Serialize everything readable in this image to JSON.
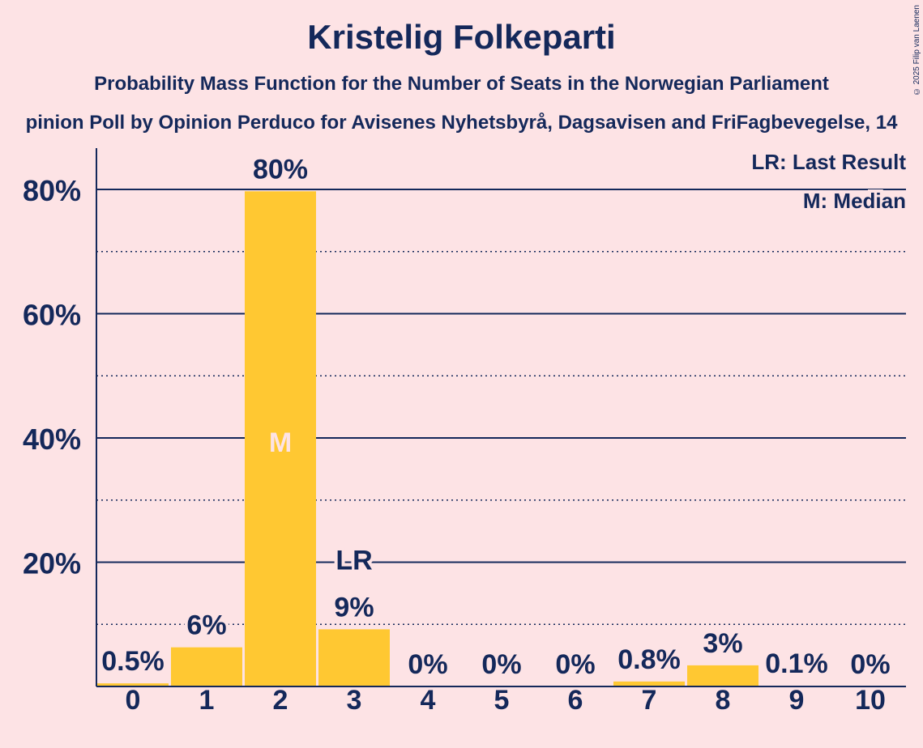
{
  "title": "Kristelig Folkeparti",
  "subtitle": "Probability Mass Function for the Number of Seats in the Norwegian Parliament",
  "subtitle2": "pinion Poll by Opinion Perduco for Avisenes Nyhetsbyrå, Dagsavisen and FriFagbevegelse, 14",
  "copyright": "© 2025 Filip van Laenen",
  "colors": {
    "background": "#fde3e5",
    "bar": "#ffc832",
    "text": "#14285a"
  },
  "chart_data": {
    "type": "bar",
    "categories": [
      "0",
      "1",
      "2",
      "3",
      "4",
      "5",
      "6",
      "7",
      "8",
      "9",
      "10"
    ],
    "values": [
      0.5,
      6.3,
      79.7,
      9.2,
      0,
      0,
      0,
      0.8,
      3.4,
      0.1,
      0
    ],
    "value_labels": [
      "0.5%",
      "6%",
      "80%",
      "9%",
      "0%",
      "0%",
      "0%",
      "0.8%",
      "3%",
      "0.1%",
      "0%"
    ],
    "ylim": [
      0,
      87
    ],
    "yticks": [
      20,
      40,
      60,
      80
    ],
    "ytick_labels": [
      "20%",
      "40%",
      "60%",
      "80%"
    ],
    "minor_gridlines": [
      10,
      30,
      50,
      70
    ],
    "median_seat": "2",
    "median_marker": "M",
    "last_result_seat": "3",
    "last_result_marker": "LR",
    "legend": [
      "LR: Last Result",
      "M: Median"
    ],
    "legend_position": "top-right"
  }
}
